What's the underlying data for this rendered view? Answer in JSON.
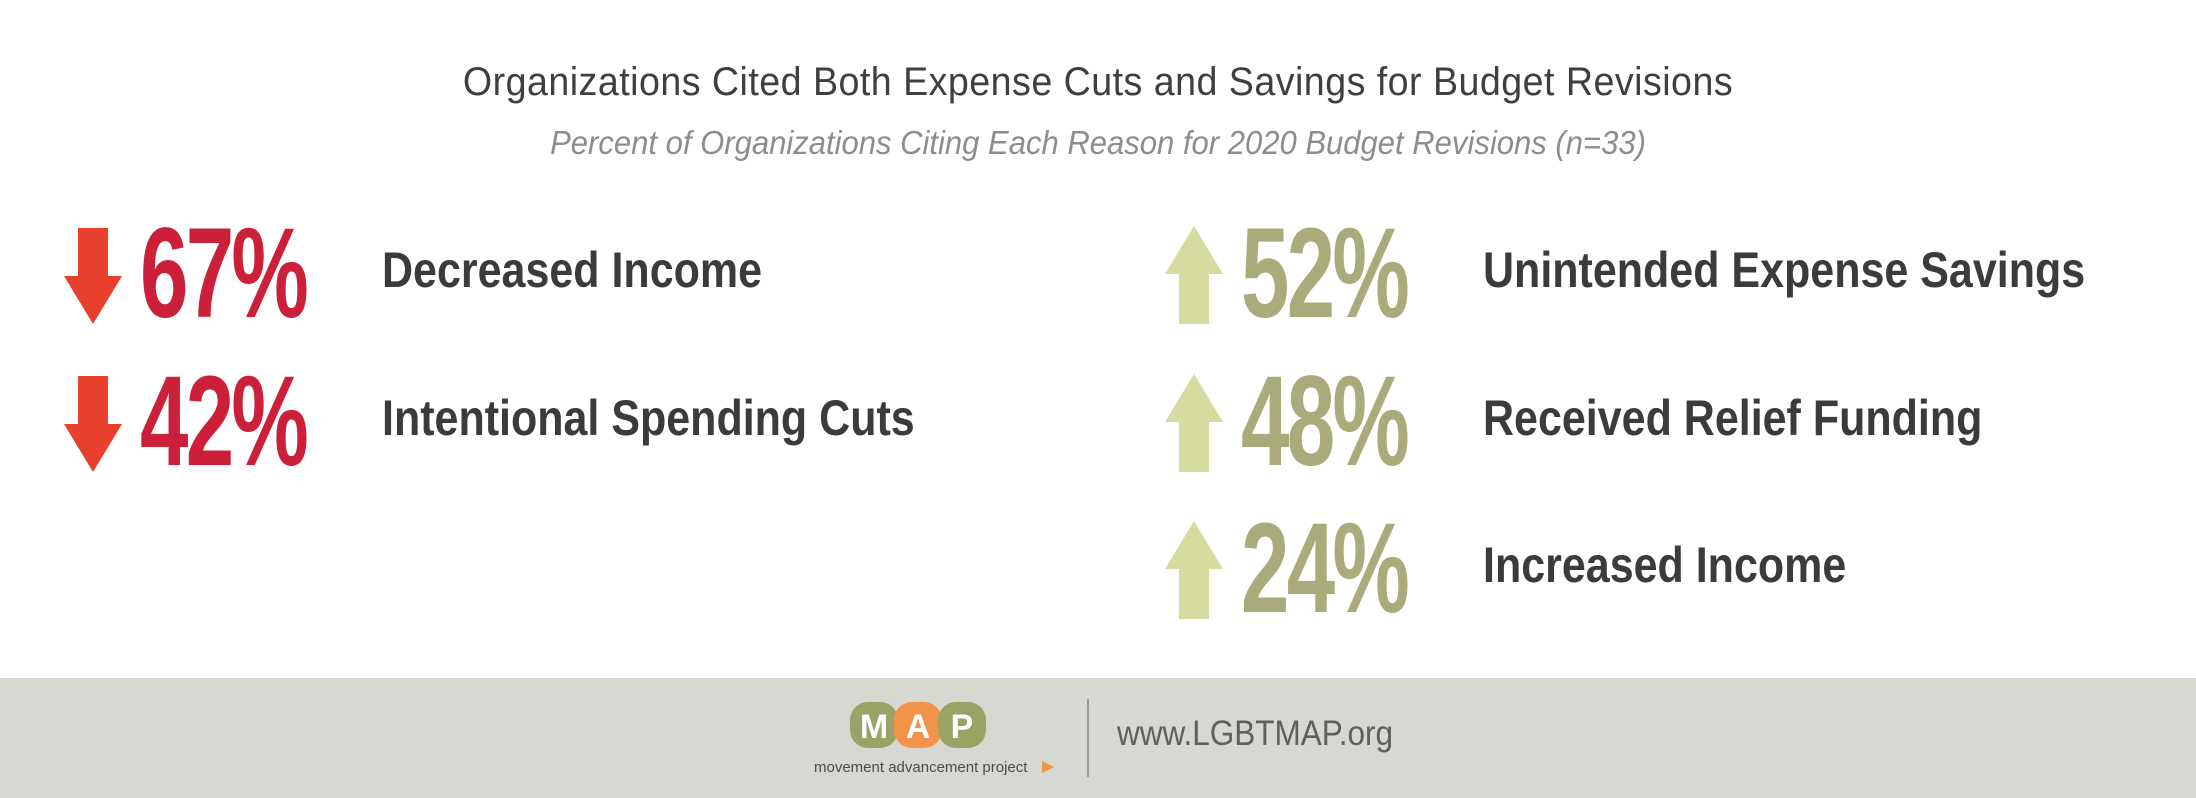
{
  "chart_data": {
    "type": "table",
    "title": "Organizations Cited Both Expense Cuts and Savings for Budget Revisions",
    "subtitle": "Percent of Organizations Citing Each Reason for 2020 Budget Revisions (n=33)",
    "categories": [
      "Decreased Income",
      "Intentional Spending Cuts",
      "Unintended Expense Savings",
      "Received Relief Funding",
      "Increased Income"
    ],
    "values": [
      67,
      42,
      52,
      48,
      24
    ],
    "items": [
      {
        "value": 67,
        "display": "67%",
        "label": "Decreased Income",
        "direction": "down",
        "color": "#cc1f3a",
        "arrow_color": "#e8402d"
      },
      {
        "value": 42,
        "display": "42%",
        "label": "Intentional Spending Cuts",
        "direction": "down",
        "color": "#cc1f3a",
        "arrow_color": "#e8402d"
      },
      {
        "value": 52,
        "display": "52%",
        "label": "Unintended Expense Savings",
        "direction": "up",
        "color": "#a9ab7a",
        "arrow_color": "#d6dca0"
      },
      {
        "value": 48,
        "display": "48%",
        "label": "Received Relief Funding",
        "direction": "up",
        "color": "#a9ab7a",
        "arrow_color": "#d6dca0"
      },
      {
        "value": 24,
        "display": "24%",
        "label": "Increased Income",
        "direction": "up",
        "color": "#a9ab7a",
        "arrow_color": "#d6dca0"
      }
    ],
    "unit": "%"
  },
  "footer": {
    "logo_letters": [
      "M",
      "A",
      "P"
    ],
    "logo_tagline": "movement advancement project",
    "url": "www.LGBTMAP.org",
    "background": "#d8d8d3",
    "logo_colors": [
      "#9aa266",
      "#f2934a",
      "#9aa266"
    ]
  }
}
